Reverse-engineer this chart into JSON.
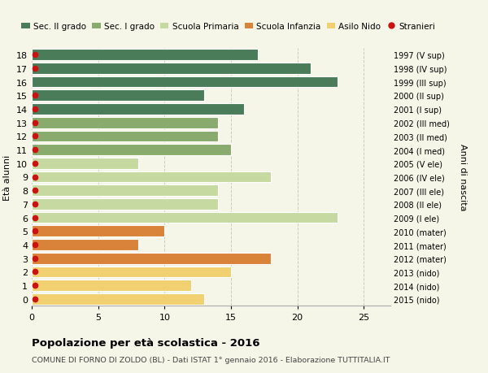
{
  "ages": [
    18,
    17,
    16,
    15,
    14,
    13,
    12,
    11,
    10,
    9,
    8,
    7,
    6,
    5,
    4,
    3,
    2,
    1,
    0
  ],
  "years": [
    "1997 (V sup)",
    "1998 (IV sup)",
    "1999 (III sup)",
    "2000 (II sup)",
    "2001 (I sup)",
    "2002 (III med)",
    "2003 (II med)",
    "2004 (I med)",
    "2005 (V ele)",
    "2006 (IV ele)",
    "2007 (III ele)",
    "2008 (II ele)",
    "2009 (I ele)",
    "2010 (mater)",
    "2011 (mater)",
    "2012 (mater)",
    "2013 (nido)",
    "2014 (nido)",
    "2015 (nido)"
  ],
  "values": [
    17,
    21,
    23,
    13,
    16,
    14,
    14,
    15,
    8,
    18,
    14,
    14,
    23,
    10,
    8,
    18,
    15,
    12,
    13
  ],
  "stranieri": [
    1,
    1,
    0,
    1,
    1,
    1,
    1,
    1,
    1,
    1,
    1,
    1,
    1,
    1,
    1,
    1,
    1,
    1,
    1
  ],
  "bar_colors": [
    "#4a7c59",
    "#4a7c59",
    "#4a7c59",
    "#4a7c59",
    "#4a7c59",
    "#8aab6e",
    "#8aab6e",
    "#8aab6e",
    "#c5d9a0",
    "#c5d9a0",
    "#c5d9a0",
    "#c5d9a0",
    "#c5d9a0",
    "#d9833a",
    "#d9833a",
    "#d9833a",
    "#f0d070",
    "#f0d070",
    "#f0d070"
  ],
  "legend_labels": [
    "Sec. II grado",
    "Sec. I grado",
    "Scuola Primaria",
    "Scuola Infanzia",
    "Asilo Nido",
    "Stranieri"
  ],
  "legend_colors": [
    "#4a7c59",
    "#8aab6e",
    "#c5d9a0",
    "#d9833a",
    "#f0d070",
    "#cc2222"
  ],
  "ylabel_left": "Età alunni",
  "ylabel_right": "Anni di nascita",
  "xlim": [
    0,
    27
  ],
  "ylim": [
    -0.5,
    18.5
  ],
  "title": "Popolazione per età scolastica - 2016",
  "subtitle": "COMUNE DI FORNO DI ZOLDO (BL) - Dati ISTAT 1° gennaio 2016 - Elaborazione TUTTITALIA.IT",
  "background_color": "#f5f5e8",
  "grid_color": "#ccccbb",
  "bar_edge_color": "#ffffff",
  "stranieri_color": "#cc1111",
  "stranieri_x": 0.25
}
